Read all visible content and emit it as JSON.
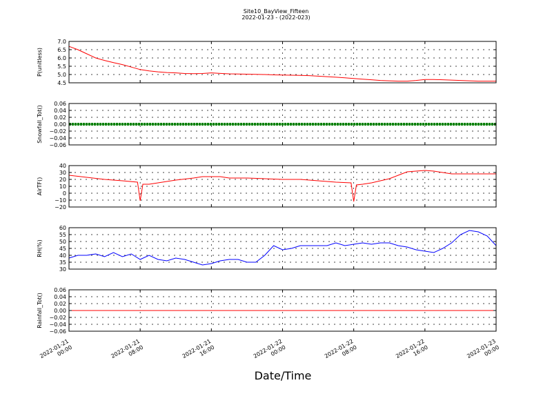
{
  "title": "Site10_BayView_Fifteen",
  "subtitle": "2022-01-23 - (2022-023)",
  "xlabel": "Date/Time",
  "x_ticks": [
    [
      "2022-01-21",
      "00:00"
    ],
    [
      "2022-01-21",
      "08:00"
    ],
    [
      "2022-01-21",
      "16:00"
    ],
    [
      "2022-01-22",
      "00:00"
    ],
    [
      "2022-01-22",
      "08:00"
    ],
    [
      "2022-01-22",
      "16:00"
    ],
    [
      "2022-01-23",
      "00:00"
    ]
  ],
  "chart_data": [
    {
      "type": "line",
      "ylabel": "P(unitless)",
      "color": "#ff0000",
      "ylim": [
        4.5,
        7.0
      ],
      "yticks": [
        4.5,
        5.0,
        5.5,
        6.0,
        6.5,
        7.0
      ],
      "ytick_labels": [
        "4.5",
        "5.0",
        "5.5",
        "6.0",
        "6.5",
        "7.0"
      ],
      "grid": true,
      "x_hours": [
        0,
        1,
        2,
        3,
        4,
        5,
        6,
        7,
        8,
        9,
        10,
        11,
        12,
        13,
        14,
        15,
        16,
        17,
        18,
        19,
        20,
        21,
        22,
        23,
        24,
        25,
        26,
        27,
        28,
        29,
        30,
        31,
        32,
        33,
        34,
        35,
        36,
        37,
        38,
        39,
        40,
        41,
        42,
        43,
        44,
        45,
        46,
        47,
        48
      ],
      "values": [
        6.7,
        6.5,
        6.25,
        6.0,
        5.85,
        5.72,
        5.6,
        5.45,
        5.3,
        5.22,
        5.16,
        5.12,
        5.1,
        5.06,
        5.05,
        5.06,
        5.1,
        5.07,
        5.04,
        5.03,
        5.02,
        5.01,
        5.0,
        4.98,
        4.97,
        4.96,
        4.95,
        4.93,
        4.9,
        4.87,
        4.84,
        4.8,
        4.76,
        4.72,
        4.68,
        4.64,
        4.62,
        4.6,
        4.6,
        4.64,
        4.7,
        4.7,
        4.68,
        4.66,
        4.64,
        4.62,
        4.6,
        4.6,
        4.6
      ]
    },
    {
      "type": "line",
      "ylabel": "Snowfall_Tot()",
      "color": "#008000",
      "ylim": [
        -0.06,
        0.06
      ],
      "yticks": [
        -0.06,
        -0.04,
        -0.02,
        0.0,
        0.02,
        0.04,
        0.06
      ],
      "ytick_labels": [
        "−0.06",
        "−0.04",
        "−0.02",
        "0.00",
        "0.02",
        "0.04",
        "0.06"
      ],
      "grid": true,
      "markers": true,
      "x_hours": [
        0,
        48
      ],
      "values": [
        0.0,
        0.0
      ]
    },
    {
      "type": "line",
      "ylabel": "AirTF()",
      "color": "#ff0000",
      "ylim": [
        -20,
        40
      ],
      "yticks": [
        -20,
        -10,
        0,
        10,
        20,
        30,
        40
      ],
      "ytick_labels": [
        "−20",
        "−10",
        "0",
        "10",
        "20",
        "30",
        "40"
      ],
      "grid": true,
      "x_hours": [
        0,
        2,
        4,
        6,
        7.7,
        8.0,
        8.3,
        9,
        10,
        12,
        14,
        15,
        16,
        17,
        18,
        20,
        22,
        24,
        26,
        28,
        30,
        31.7,
        32.0,
        32.3,
        33,
        34,
        35,
        36,
        37,
        38,
        39,
        40,
        41,
        42,
        43,
        44,
        45,
        46,
        47,
        48
      ],
      "values": [
        26,
        23,
        20,
        18,
        16,
        -11,
        13,
        13,
        15,
        19,
        22,
        24,
        24,
        24,
        22,
        22,
        21,
        20,
        20,
        18,
        16,
        15,
        -12,
        12,
        13,
        15,
        18,
        21,
        26,
        31,
        32,
        33,
        32,
        30,
        28,
        28,
        28,
        28,
        28,
        28
      ]
    },
    {
      "type": "line",
      "ylabel": "RH(%)",
      "color": "#0000ff",
      "ylim": [
        30,
        60
      ],
      "yticks": [
        30,
        35,
        40,
        45,
        50,
        55,
        60
      ],
      "ytick_labels": [
        "30",
        "35",
        "40",
        "45",
        "50",
        "55",
        "60"
      ],
      "grid": true,
      "x_hours": [
        0,
        1,
        2,
        3,
        4,
        5,
        6,
        7,
        8,
        9,
        10,
        11,
        12,
        13,
        14,
        15,
        16,
        17,
        18,
        19,
        20,
        21,
        22,
        23,
        24,
        25,
        26,
        27,
        28,
        29,
        30,
        31,
        32,
        33,
        34,
        35,
        36,
        37,
        38,
        39,
        40,
        41,
        42,
        43,
        44,
        45,
        46,
        47,
        48
      ],
      "values": [
        38,
        40,
        40,
        41,
        39,
        42,
        39,
        41,
        37,
        40,
        37,
        36,
        38,
        37,
        35,
        33,
        34,
        36,
        37,
        37,
        35,
        35,
        40,
        47,
        44,
        45,
        47,
        47,
        47,
        47,
        49,
        47,
        48,
        49,
        48,
        49,
        49,
        47,
        46,
        44,
        43,
        42,
        45,
        49,
        55,
        58,
        57,
        54,
        47
      ]
    },
    {
      "type": "line",
      "ylabel": "Rainfall_Tot()",
      "color": "#ff0000",
      "ylim": [
        -0.06,
        0.06
      ],
      "yticks": [
        -0.06,
        -0.04,
        -0.02,
        0.0,
        0.02,
        0.04,
        0.06
      ],
      "ytick_labels": [
        "−0.06",
        "−0.04",
        "−0.02",
        "0.00",
        "0.02",
        "0.04",
        "0.06"
      ],
      "grid": true,
      "x_hours": [
        0,
        48
      ],
      "values": [
        0.0,
        0.0
      ]
    }
  ]
}
